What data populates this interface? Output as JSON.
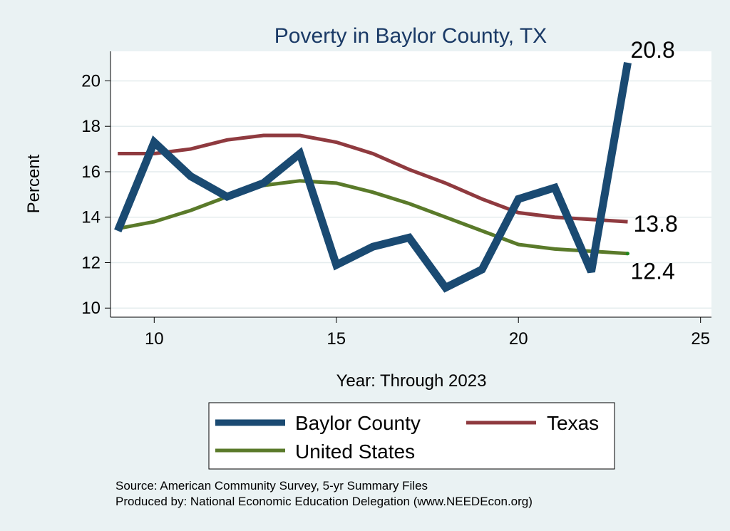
{
  "chart_data": {
    "type": "line",
    "title": "Poverty in Baylor County, TX",
    "xlabel": "Year: Through 2023",
    "ylabel": "Percent",
    "xlim": [
      8.8,
      25.3
    ],
    "ylim": [
      9.6,
      21.3
    ],
    "xticks": [
      10,
      15,
      20,
      25
    ],
    "yticks": [
      10,
      12,
      14,
      16,
      18,
      20
    ],
    "x": [
      9,
      10,
      11,
      12,
      13,
      14,
      15,
      16,
      17,
      18,
      19,
      20,
      21,
      22,
      23
    ],
    "series": [
      {
        "name": "Baylor County",
        "color": "#1a4a72",
        "values": [
          13.4,
          17.3,
          15.8,
          14.9,
          15.5,
          16.8,
          11.9,
          12.7,
          13.1,
          10.9,
          11.7,
          14.8,
          15.3,
          11.6,
          20.8
        ],
        "end_label": "20.8"
      },
      {
        "name": "Texas",
        "color": "#8f3a3f",
        "values": [
          16.8,
          16.8,
          17.0,
          17.4,
          17.6,
          17.6,
          17.3,
          16.8,
          16.1,
          15.5,
          14.8,
          14.2,
          14.0,
          13.9,
          13.8
        ],
        "end_label": "13.8"
      },
      {
        "name": "United States",
        "color": "#5a7a2a",
        "values": [
          13.5,
          13.8,
          14.3,
          14.9,
          15.4,
          15.6,
          15.5,
          15.1,
          14.6,
          14.0,
          13.4,
          12.8,
          12.6,
          12.5,
          12.4
        ],
        "end_label": "12.4"
      }
    ],
    "legend": {
      "placement": "bottom",
      "items": [
        "Baylor County",
        "Texas",
        "United States"
      ]
    },
    "source_line1": "Source: American Community Survey, 5-yr Summary Files",
    "source_line2": "Produced by: National Economic Education Delegation (www.NEEDEcon.org)"
  }
}
